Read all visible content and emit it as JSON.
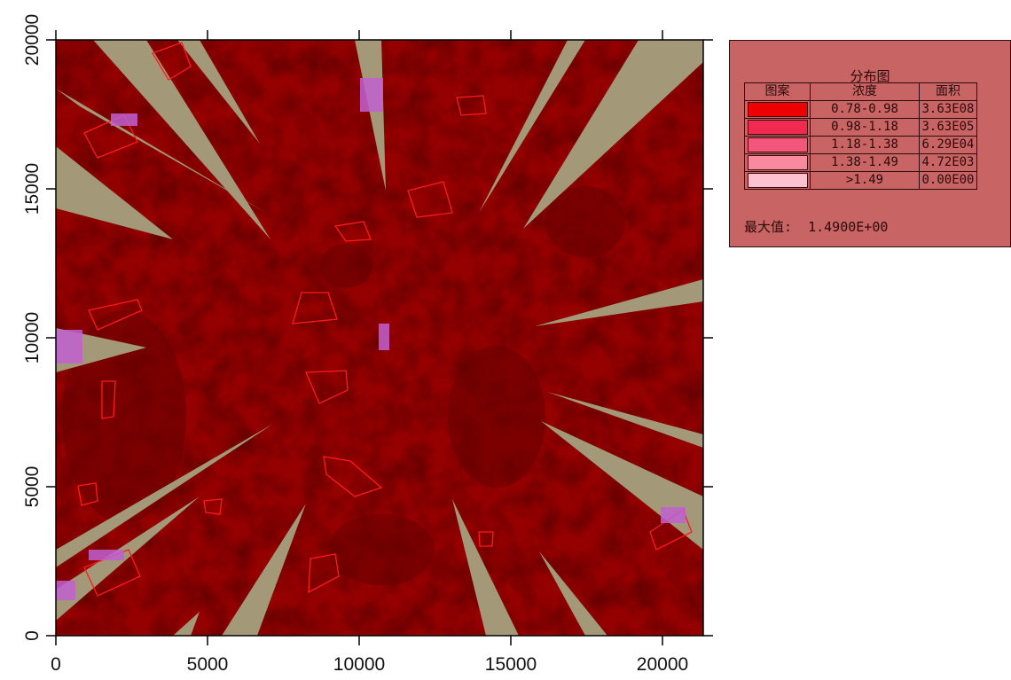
{
  "map": {
    "x_ticks": [
      "0",
      "5000",
      "10000",
      "15000",
      "20000"
    ],
    "y_ticks": [
      "0",
      "5000",
      "10000",
      "15000",
      "20000"
    ],
    "colors": {
      "background_red": "#950000",
      "gap_khaki": "#a39877",
      "outline_red": "#ff1a1a",
      "hotspot_magenta": "#c060d0"
    }
  },
  "legend": {
    "title": "分布图",
    "headers": [
      "图案",
      "浓度",
      "面积"
    ],
    "rows": [
      {
        "color": "#ee0000",
        "range": "0.78-0.98",
        "area": "3.63E08"
      },
      {
        "color": "#f02a50",
        "range": "0.98-1.18",
        "area": "3.63E05"
      },
      {
        "color": "#f4557a",
        "range": "1.18-1.38",
        "area": "6.29E04"
      },
      {
        "color": "#f8899f",
        "range": "1.38-1.49",
        "area": "4.72E03"
      },
      {
        "color": "#fcc2cf",
        "range": ">1.49",
        "area": "0.00E00"
      }
    ],
    "max_label": "最大值:",
    "max_value": "1.4900E+00"
  }
}
